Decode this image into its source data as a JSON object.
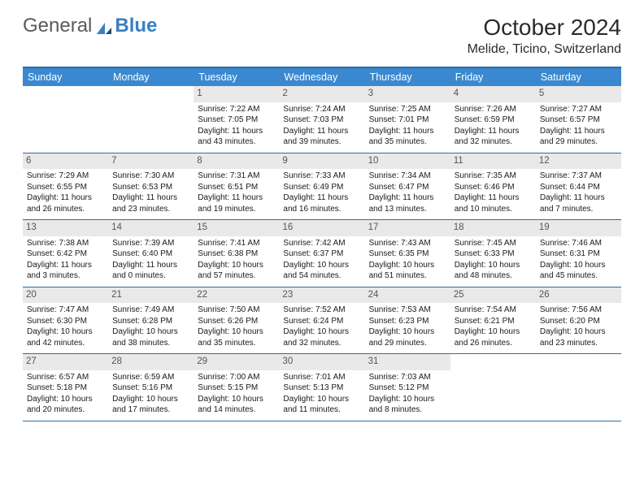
{
  "logo": {
    "word1": "General",
    "word2": "Blue"
  },
  "title": "October 2024",
  "location": "Melide, Ticino, Switzerland",
  "colors": {
    "header_bg": "#3a89d0",
    "border": "#2c6ca8",
    "num_bg": "#e9e9e9",
    "logo_blue": "#3a7fc4"
  },
  "day_labels": [
    "Sunday",
    "Monday",
    "Tuesday",
    "Wednesday",
    "Thursday",
    "Friday",
    "Saturday"
  ],
  "weeks": [
    [
      {
        "n": "",
        "sr": "",
        "ss": "",
        "d1": "",
        "d2": ""
      },
      {
        "n": "",
        "sr": "",
        "ss": "",
        "d1": "",
        "d2": ""
      },
      {
        "n": "1",
        "sr": "Sunrise: 7:22 AM",
        "ss": "Sunset: 7:05 PM",
        "d1": "Daylight: 11 hours",
        "d2": "and 43 minutes."
      },
      {
        "n": "2",
        "sr": "Sunrise: 7:24 AM",
        "ss": "Sunset: 7:03 PM",
        "d1": "Daylight: 11 hours",
        "d2": "and 39 minutes."
      },
      {
        "n": "3",
        "sr": "Sunrise: 7:25 AM",
        "ss": "Sunset: 7:01 PM",
        "d1": "Daylight: 11 hours",
        "d2": "and 35 minutes."
      },
      {
        "n": "4",
        "sr": "Sunrise: 7:26 AM",
        "ss": "Sunset: 6:59 PM",
        "d1": "Daylight: 11 hours",
        "d2": "and 32 minutes."
      },
      {
        "n": "5",
        "sr": "Sunrise: 7:27 AM",
        "ss": "Sunset: 6:57 PM",
        "d1": "Daylight: 11 hours",
        "d2": "and 29 minutes."
      }
    ],
    [
      {
        "n": "6",
        "sr": "Sunrise: 7:29 AM",
        "ss": "Sunset: 6:55 PM",
        "d1": "Daylight: 11 hours",
        "d2": "and 26 minutes."
      },
      {
        "n": "7",
        "sr": "Sunrise: 7:30 AM",
        "ss": "Sunset: 6:53 PM",
        "d1": "Daylight: 11 hours",
        "d2": "and 23 minutes."
      },
      {
        "n": "8",
        "sr": "Sunrise: 7:31 AM",
        "ss": "Sunset: 6:51 PM",
        "d1": "Daylight: 11 hours",
        "d2": "and 19 minutes."
      },
      {
        "n": "9",
        "sr": "Sunrise: 7:33 AM",
        "ss": "Sunset: 6:49 PM",
        "d1": "Daylight: 11 hours",
        "d2": "and 16 minutes."
      },
      {
        "n": "10",
        "sr": "Sunrise: 7:34 AM",
        "ss": "Sunset: 6:47 PM",
        "d1": "Daylight: 11 hours",
        "d2": "and 13 minutes."
      },
      {
        "n": "11",
        "sr": "Sunrise: 7:35 AM",
        "ss": "Sunset: 6:46 PM",
        "d1": "Daylight: 11 hours",
        "d2": "and 10 minutes."
      },
      {
        "n": "12",
        "sr": "Sunrise: 7:37 AM",
        "ss": "Sunset: 6:44 PM",
        "d1": "Daylight: 11 hours",
        "d2": "and 7 minutes."
      }
    ],
    [
      {
        "n": "13",
        "sr": "Sunrise: 7:38 AM",
        "ss": "Sunset: 6:42 PM",
        "d1": "Daylight: 11 hours",
        "d2": "and 3 minutes."
      },
      {
        "n": "14",
        "sr": "Sunrise: 7:39 AM",
        "ss": "Sunset: 6:40 PM",
        "d1": "Daylight: 11 hours",
        "d2": "and 0 minutes."
      },
      {
        "n": "15",
        "sr": "Sunrise: 7:41 AM",
        "ss": "Sunset: 6:38 PM",
        "d1": "Daylight: 10 hours",
        "d2": "and 57 minutes."
      },
      {
        "n": "16",
        "sr": "Sunrise: 7:42 AM",
        "ss": "Sunset: 6:37 PM",
        "d1": "Daylight: 10 hours",
        "d2": "and 54 minutes."
      },
      {
        "n": "17",
        "sr": "Sunrise: 7:43 AM",
        "ss": "Sunset: 6:35 PM",
        "d1": "Daylight: 10 hours",
        "d2": "and 51 minutes."
      },
      {
        "n": "18",
        "sr": "Sunrise: 7:45 AM",
        "ss": "Sunset: 6:33 PM",
        "d1": "Daylight: 10 hours",
        "d2": "and 48 minutes."
      },
      {
        "n": "19",
        "sr": "Sunrise: 7:46 AM",
        "ss": "Sunset: 6:31 PM",
        "d1": "Daylight: 10 hours",
        "d2": "and 45 minutes."
      }
    ],
    [
      {
        "n": "20",
        "sr": "Sunrise: 7:47 AM",
        "ss": "Sunset: 6:30 PM",
        "d1": "Daylight: 10 hours",
        "d2": "and 42 minutes."
      },
      {
        "n": "21",
        "sr": "Sunrise: 7:49 AM",
        "ss": "Sunset: 6:28 PM",
        "d1": "Daylight: 10 hours",
        "d2": "and 38 minutes."
      },
      {
        "n": "22",
        "sr": "Sunrise: 7:50 AM",
        "ss": "Sunset: 6:26 PM",
        "d1": "Daylight: 10 hours",
        "d2": "and 35 minutes."
      },
      {
        "n": "23",
        "sr": "Sunrise: 7:52 AM",
        "ss": "Sunset: 6:24 PM",
        "d1": "Daylight: 10 hours",
        "d2": "and 32 minutes."
      },
      {
        "n": "24",
        "sr": "Sunrise: 7:53 AM",
        "ss": "Sunset: 6:23 PM",
        "d1": "Daylight: 10 hours",
        "d2": "and 29 minutes."
      },
      {
        "n": "25",
        "sr": "Sunrise: 7:54 AM",
        "ss": "Sunset: 6:21 PM",
        "d1": "Daylight: 10 hours",
        "d2": "and 26 minutes."
      },
      {
        "n": "26",
        "sr": "Sunrise: 7:56 AM",
        "ss": "Sunset: 6:20 PM",
        "d1": "Daylight: 10 hours",
        "d2": "and 23 minutes."
      }
    ],
    [
      {
        "n": "27",
        "sr": "Sunrise: 6:57 AM",
        "ss": "Sunset: 5:18 PM",
        "d1": "Daylight: 10 hours",
        "d2": "and 20 minutes."
      },
      {
        "n": "28",
        "sr": "Sunrise: 6:59 AM",
        "ss": "Sunset: 5:16 PM",
        "d1": "Daylight: 10 hours",
        "d2": "and 17 minutes."
      },
      {
        "n": "29",
        "sr": "Sunrise: 7:00 AM",
        "ss": "Sunset: 5:15 PM",
        "d1": "Daylight: 10 hours",
        "d2": "and 14 minutes."
      },
      {
        "n": "30",
        "sr": "Sunrise: 7:01 AM",
        "ss": "Sunset: 5:13 PM",
        "d1": "Daylight: 10 hours",
        "d2": "and 11 minutes."
      },
      {
        "n": "31",
        "sr": "Sunrise: 7:03 AM",
        "ss": "Sunset: 5:12 PM",
        "d1": "Daylight: 10 hours",
        "d2": "and 8 minutes."
      },
      {
        "n": "",
        "sr": "",
        "ss": "",
        "d1": "",
        "d2": ""
      },
      {
        "n": "",
        "sr": "",
        "ss": "",
        "d1": "",
        "d2": ""
      }
    ]
  ]
}
